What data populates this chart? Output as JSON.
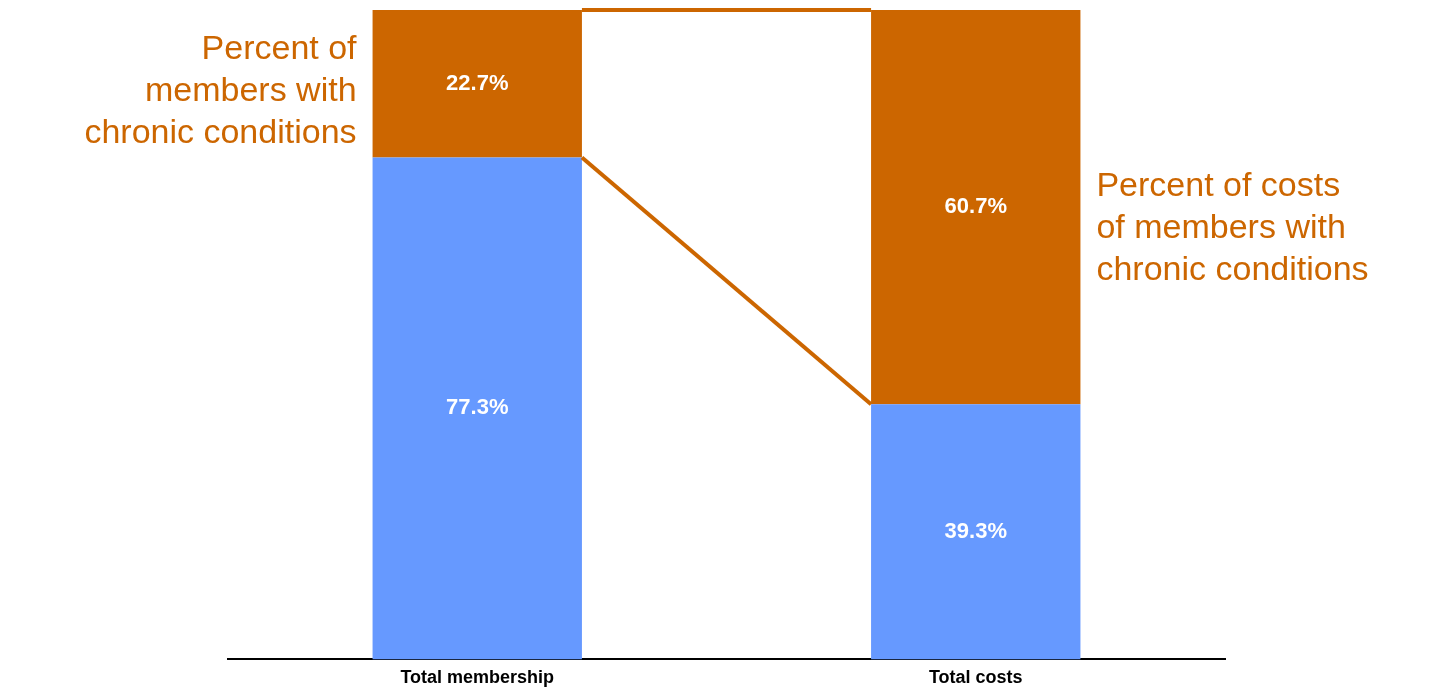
{
  "chart_data": {
    "type": "bar",
    "stacked": true,
    "categories": [
      "Total membership",
      "Total costs"
    ],
    "series": [
      {
        "color": "#6699ff",
        "values": [
          77.3,
          39.3
        ],
        "value_labels": [
          "77.3%",
          "39.3%"
        ]
      },
      {
        "color": "#cc6600",
        "values": [
          22.7,
          60.7
        ],
        "value_labels": [
          "22.7%",
          "60.7%"
        ]
      }
    ],
    "annotations": [
      "Percent of members with chronic conditions",
      "Percent of costs of members with chronic conditions"
    ],
    "grid": false,
    "legend": false
  }
}
